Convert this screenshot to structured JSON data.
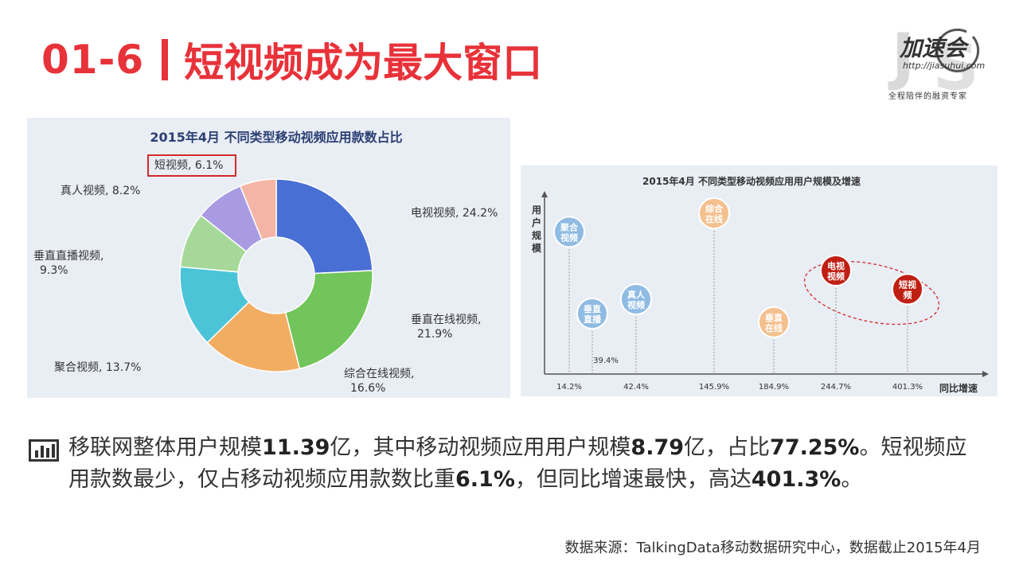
{
  "header": {
    "code": "01-6",
    "title": "短视频成为最大窗口"
  },
  "logo": {
    "brand": "加速会",
    "url": "http://jiasuhui.com",
    "slogan": "全程陪伴的融资专家"
  },
  "chart_data": [
    {
      "type": "pie",
      "title": "2015年4月  不同类型移动视频应用款数占比",
      "slices": [
        {
          "label": "电视视频, 24.2%",
          "value": 24.2,
          "color": "#4a6fd4"
        },
        {
          "label": "垂直在线视频, 21.9%",
          "value": 21.9,
          "color": "#72c55a"
        },
        {
          "label": "综合在线视频, 16.6%",
          "value": 16.6,
          "color": "#f1ad62"
        },
        {
          "label": "聚合视频, 13.7%",
          "value": 13.7,
          "color": "#4cc4d8"
        },
        {
          "label": "垂直直播视频, 9.3%",
          "value": 9.3,
          "color": "#a6d999"
        },
        {
          "label": "真人视频, 8.2%",
          "value": 8.2,
          "color": "#a89be2"
        },
        {
          "label": "短视频, 6.1%",
          "value": 6.1,
          "color": "#f4b5a6",
          "highlighted": true
        }
      ]
    },
    {
      "type": "scatter",
      "title": "2015年4月 不同类型移动视频应用用户规模及增速",
      "ylabel": "用户规模",
      "xlabel": "同比增速",
      "x_ticks": [
        "14.2%",
        "42.4%",
        "145.9%",
        "184.9%",
        "244.7%",
        "401.3%"
      ],
      "points": [
        {
          "label": "聚合视频",
          "x": 14.2,
          "tick": "14.2%",
          "y_level": 0.87,
          "color": "#8fbbe3",
          "highlighted": false
        },
        {
          "label": "垂直直播",
          "x": 39.4,
          "tick": "39.4%",
          "y_level": 0.3,
          "color": "#8fbbe3",
          "highlighted": false
        },
        {
          "label": "真人视频",
          "x": 42.4,
          "tick": "42.4%",
          "y_level": 0.4,
          "color": "#8fbbe3",
          "highlighted": false
        },
        {
          "label": "综合在线",
          "x": 145.9,
          "tick": "145.9%",
          "y_level": 1.0,
          "color": "#f4c08e",
          "highlighted": false
        },
        {
          "label": "垂直在线",
          "x": 184.9,
          "tick": "184.9%",
          "y_level": 0.24,
          "color": "#f4c08e",
          "highlighted": false
        },
        {
          "label": "电视视频",
          "x": 244.7,
          "tick": "244.7%",
          "y_level": 0.6,
          "color": "#c01f14",
          "highlighted": true
        },
        {
          "label": "短视频",
          "x": 401.3,
          "tick": "401.3%",
          "y_level": 0.47,
          "color": "#c01f14",
          "highlighted": true
        }
      ],
      "extra_label": "39.4%"
    }
  ],
  "summary": {
    "p1": "移联网整体用户规模",
    "v1": "11.39",
    "p2": "亿，其中移动视频应用用户规模",
    "v2": "8.79",
    "p3": "亿，占比",
    "v3": "77.25%",
    "p4": "。短视频应用款数最少，仅占移动视频应用款数比重",
    "v4": "6.1%",
    "p5": "，但同比增速最快，高达",
    "v5": "401.3%",
    "p6": "。"
  },
  "source": "数据来源：TalkingData移动数据研究中心，数据截止2015年4月"
}
